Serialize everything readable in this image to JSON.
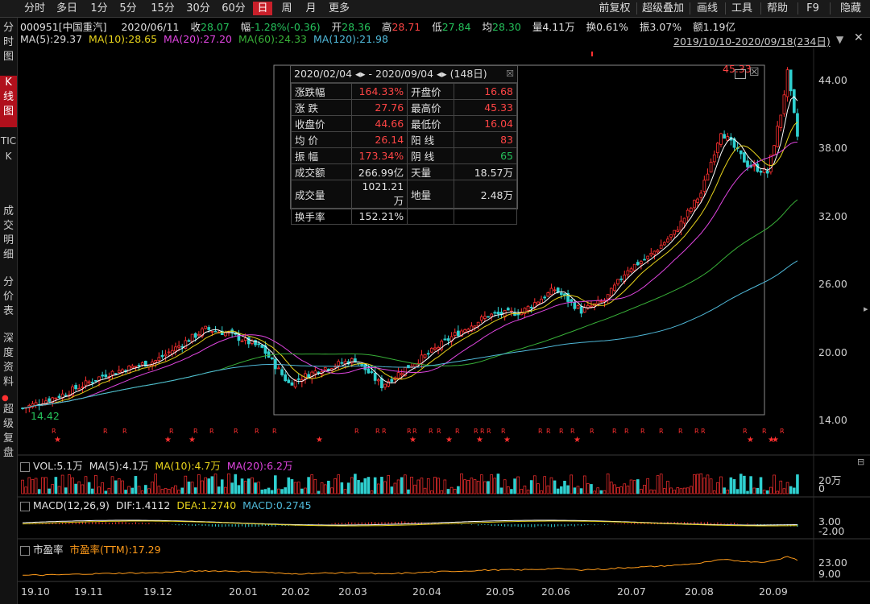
{
  "toolbar": {
    "periods": [
      "分时",
      "多日",
      "1分",
      "5分",
      "15分",
      "30分",
      "60分",
      "日",
      "周",
      "月",
      "更多"
    ],
    "active_period": "日",
    "right": [
      "前复权",
      "超级叠加",
      "画线",
      "工具",
      "帮助",
      "F9",
      "隐藏"
    ]
  },
  "leftnav": {
    "items": [
      "分时图",
      "K线图",
      "TICK",
      "成交明细",
      "分价表",
      "深度资料",
      "超级复盘"
    ],
    "active": "K线图"
  },
  "quote": {
    "code_name": "000951[中国重汽]",
    "date": "2020/06/11",
    "close_label": "收",
    "close": "28.07",
    "change_label": "幅",
    "change": "-1.28%(-0.36)",
    "open_label": "开",
    "open": "28.36",
    "high_label": "高",
    "high": "28.71",
    "low_label": "低",
    "low": "27.84",
    "avg_label": "均",
    "avg": "28.30",
    "vol_label": "量",
    "vol": "4.11万",
    "turnover_label": "换",
    "turnover": "0.61%",
    "amplitude_label": "振",
    "amplitude": "3.07%",
    "amount_label": "额",
    "amount": "1.19亿"
  },
  "ma": {
    "ma5": "MA(5):29.37",
    "ma10": "MA(10):28.65",
    "ma20": "MA(20):27.20",
    "ma60": "MA(60):24.33",
    "ma120": "MA(120):21.98"
  },
  "range_label": "2019/10/10-2020/09/18(234日)",
  "info_panel": {
    "header": "2020/02/04 ◂▸ - 2020/09/04 ◂▸ (148日)",
    "rows": [
      [
        "涨跌幅",
        "164.33%",
        "开盘价",
        "16.68"
      ],
      [
        "涨    跌",
        "27.76",
        "最高价",
        "45.33"
      ],
      [
        "收盘价",
        "44.66",
        "最低价",
        "16.04"
      ],
      [
        "均    价",
        "26.14",
        "阳    线",
        "83"
      ],
      [
        "振    幅",
        "173.34%",
        "阴    线",
        "65"
      ],
      [
        "成交额",
        "266.99亿",
        "天量",
        "18.57万"
      ],
      [
        "成交量",
        "1021.21万",
        "地量",
        "2.48万"
      ],
      [
        "换手率",
        "152.21%",
        "",
        ""
      ]
    ]
  },
  "price_axis": [
    "44.00",
    "38.00",
    "32.00",
    "26.00",
    "20.00",
    "14.00"
  ],
  "high_marker": "45.33",
  "low_marker": "14.42",
  "volume": {
    "title": "VOL:5.1万",
    "ma5": "MA(5):4.1万",
    "ma10": "MA(10):4.7万",
    "ma20": "MA(20):6.2万",
    "axis": [
      "20万",
      "0"
    ]
  },
  "macd": {
    "title": "MACD(12,26,9)",
    "dif": "DIF:1.4112",
    "dea": "DEA:1.2740",
    "macd": "MACD:0.2745",
    "axis": [
      "3.00",
      "-2.00"
    ]
  },
  "pe": {
    "title": "市盈率",
    "ttm": "市盈率(TTM):17.29",
    "axis": [
      "23.00",
      "9.00"
    ]
  },
  "date_axis": [
    "19.10",
    "19.11",
    "19.12",
    "20.01",
    "20.02",
    "20.03",
    "20.04",
    "20.05",
    "20.06",
    "20.07",
    "20.08",
    "20.09"
  ],
  "colors": {
    "up": "#ff3030",
    "down": "#2fd0d0",
    "ma5": "#ffffff",
    "ma10": "#e6d21b",
    "ma20": "#e045e0",
    "ma60": "#38b038",
    "ma120": "#4fb8d8",
    "active": "#c8202a"
  }
}
